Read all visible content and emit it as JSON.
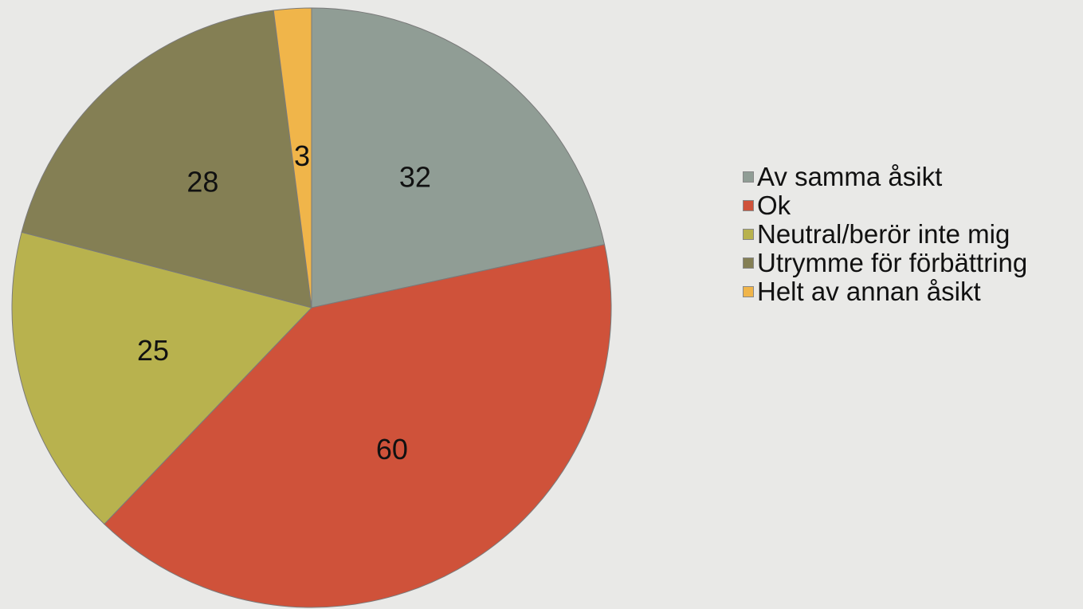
{
  "chart_data": {
    "type": "pie",
    "categories": [
      "Av samma åsikt",
      "Ok",
      "Neutral/berör inte mig",
      "Utrymme för förbättring",
      "Helt av annan åsikt"
    ],
    "values": [
      32,
      60,
      25,
      28,
      3
    ],
    "colors": [
      "#909d95",
      "#cf523a",
      "#b8b24e",
      "#847f54",
      "#f0b54a"
    ],
    "legend": "right"
  }
}
